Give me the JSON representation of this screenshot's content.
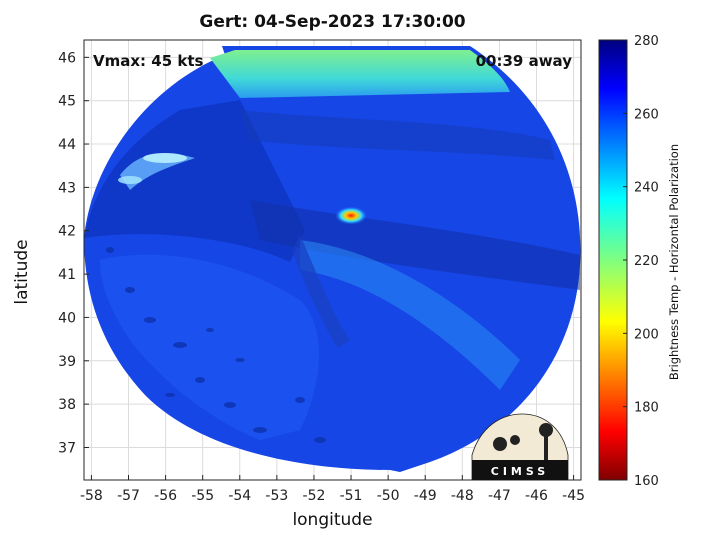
{
  "chart_data": {
    "type": "heatmap",
    "title": "Gert: 04-Sep-2023 17:30:00",
    "xlabel": "longitude",
    "ylabel": "latitude",
    "xlim": [
      -58.2,
      -44.8
    ],
    "ylim": [
      36.25,
      46.4
    ],
    "xticks": [
      -58,
      -57,
      -56,
      -55,
      -54,
      -53,
      -52,
      -51,
      -50,
      -49,
      -48,
      -47,
      -46,
      -45
    ],
    "yticks": [
      37,
      38,
      39,
      40,
      41,
      42,
      43,
      44,
      45,
      46
    ],
    "grid": true,
    "annotations": {
      "left": "Vmax: 45 kts",
      "right": "00:39 away"
    },
    "storm_center": {
      "lon": -51.0,
      "lat": 42.35
    },
    "colorbar": {
      "label": "Brightness Temp - Horizontal Polarization",
      "range": [
        160,
        280
      ],
      "ticks": [
        160,
        180,
        200,
        220,
        240,
        260,
        280
      ],
      "colormap": "jet"
    }
  },
  "logo": {
    "text": "CIMSS"
  },
  "colors": {
    "background": "#ffffff",
    "grid": "#d9d9d9",
    "axes": "#262626"
  }
}
